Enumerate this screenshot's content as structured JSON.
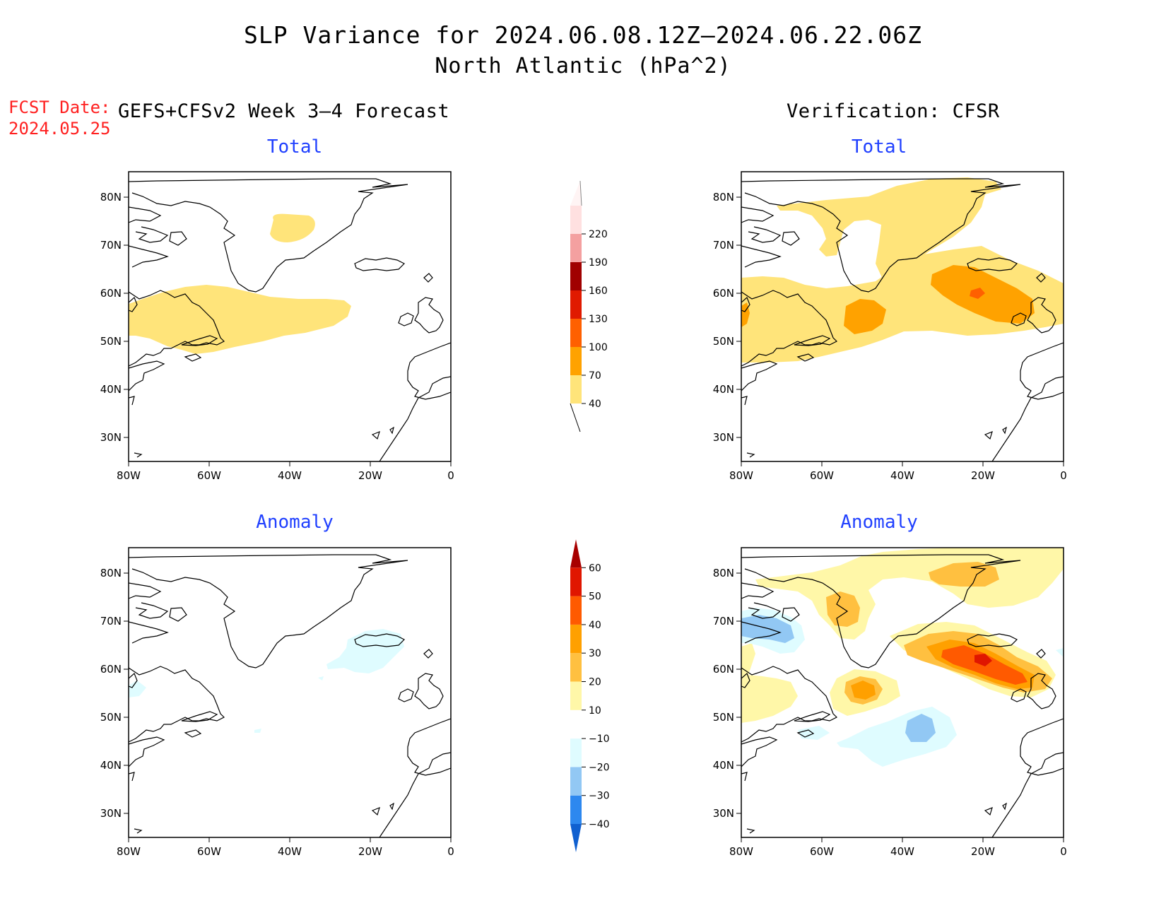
{
  "header": {
    "title": "SLP Variance for 2024.06.08.12Z–2024.06.22.06Z",
    "subtitle": "North Atlantic (hPa^2)",
    "fcst_label": "FCST Date:",
    "fcst_date": "2024.05.25",
    "left_column": "GEFS+CFSv2 Week 3–4 Forecast",
    "right_column": "Verification: CFSR"
  },
  "panels": {
    "forecast_total": {
      "title": "Total"
    },
    "verification_total": {
      "title": "Total"
    },
    "forecast_anomaly": {
      "title": "Anomaly"
    },
    "verification_anomaly": {
      "title": "Anomaly"
    }
  },
  "axes": {
    "lon_ticks": [
      "80W",
      "60W",
      "40W",
      "20W",
      "0"
    ],
    "lat_ticks": [
      "80N",
      "70N",
      "60N",
      "50N",
      "40N",
      "30N"
    ],
    "lon_range": [
      -80,
      0
    ],
    "lat_range": [
      25,
      85
    ]
  },
  "colorbars": {
    "total": {
      "levels": [
        "40",
        "70",
        "100",
        "130",
        "160",
        "190",
        "220"
      ],
      "colors": [
        "#ffe47a",
        "#ffa200",
        "#ff6000",
        "#e01a00",
        "#a00000",
        "#f4a0a0",
        "#ffe0e0"
      ]
    },
    "anomaly": {
      "levels": [
        "−40",
        "−30",
        "−20",
        "−10",
        "10",
        "20",
        "30",
        "40",
        "50",
        "60"
      ],
      "colors": [
        "#1060d0",
        "#2d88ef",
        "#92c8f4",
        "#dffcff",
        "#ffffff",
        "#fff7a8",
        "#ffc040",
        "#ffa000",
        "#ff5a00",
        "#e01600",
        "#a80000"
      ]
    }
  },
  "field_colors": {
    "total_40": "#ffe47a",
    "total_70": "#ffa200",
    "total_100": "#ff6000",
    "anom_10": "#fff7a8",
    "anom_20": "#ffc040",
    "anom_30": "#ffa000",
    "anom_40": "#ff5a00",
    "anom_50": "#e01600",
    "anom_neg10": "#dffcff",
    "anom_neg20": "#92c8f4"
  }
}
